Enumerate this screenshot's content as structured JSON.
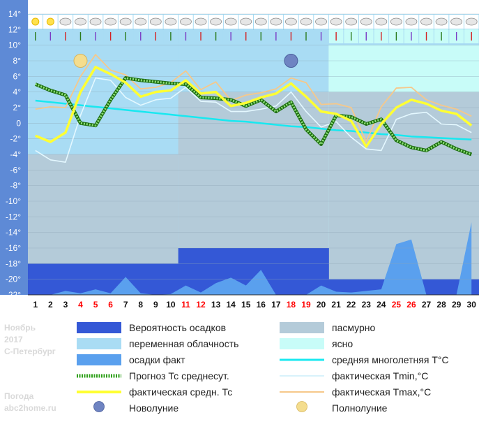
{
  "side_info": {
    "month": "Ноябрь",
    "year": "2017",
    "city": "С-Петербург",
    "site_line1": "Погода",
    "site_line2": "abc2home.ru"
  },
  "legend": {
    "precip_prob": "Вероятность осадков",
    "overcast": "пасмурно",
    "variable_cloud": "переменная облачность",
    "clear": "ясно",
    "precip_fact": "осадки факт",
    "avg_longterm": "средняя многолетняя T°C",
    "forecast_tavg": "Прогноз Тс среднесут.",
    "fact_tmin": "фактическая Tmin,°C",
    "fact_tavg": "фактическая средн. Тс",
    "fact_tmax": "фактическая Tmax,°C",
    "new_moon": "Новолуние",
    "full_moon": "Полнолуние"
  },
  "colors": {
    "plot_bg": "#a9dcf4",
    "overcast": "#b4cbd9",
    "clear_bg": "#c8fcf8",
    "precip_prob": "#3458d6",
    "precip_fact": "#5aa0ee",
    "avg_longterm": "#18e8f0",
    "forecast": "#2fa01a",
    "fact_tmin": "#e4f8ff",
    "fact_tavg": "#ffff33",
    "fact_tmax": "#f6c88a",
    "axis_panel": "#5e8ad6",
    "weekend": "#ff0000"
  },
  "chart_data": {
    "type": "line",
    "title": "",
    "xlabel": "",
    "ylabel": "",
    "x": [
      1,
      2,
      3,
      4,
      5,
      6,
      7,
      8,
      9,
      10,
      11,
      12,
      13,
      14,
      15,
      16,
      17,
      18,
      19,
      20,
      21,
      22,
      23,
      24,
      25,
      26,
      27,
      28,
      29,
      30
    ],
    "x_tick_labels": [
      "1",
      "2",
      "3",
      "4",
      "5",
      "6",
      "7",
      "8",
      "9",
      "10",
      "11",
      "12",
      "13",
      "14",
      "15",
      "16",
      "17",
      "18",
      "19",
      "20",
      "21",
      "22",
      "23",
      "24",
      "25",
      "26",
      "27",
      "28",
      "29",
      "30"
    ],
    "weekend_days": [
      4,
      5,
      6,
      11,
      12,
      18,
      19,
      25,
      26
    ],
    "ylim": [
      -22,
      14
    ],
    "y_tick_labels": [
      "14°",
      "12°",
      "10°",
      "8°",
      "6°",
      "4°",
      "2°",
      "0",
      "-2°",
      "-4°",
      "-6°",
      "-8°",
      "-10°",
      "-12°",
      "-14°",
      "-16°",
      "-18°",
      "-20°",
      "-22°"
    ],
    "grid": true,
    "series": [
      {
        "name": "Прогноз Тс среднесут.",
        "values": [
          5.0,
          4.2,
          3.6,
          0.0,
          -0.3,
          3.0,
          5.8,
          5.5,
          5.3,
          5.1,
          5.0,
          3.3,
          3.2,
          3.0,
          2.2,
          3.0,
          1.5,
          2.7,
          -0.8,
          -2.7,
          1.0,
          0.8,
          -0.1,
          0.5,
          -2.2,
          -3.1,
          -3.5,
          -2.4,
          -3.3,
          -4.0
        ]
      },
      {
        "name": "фактическая средн. Тс",
        "values": [
          -1.6,
          -2.4,
          -1.2,
          4.0,
          7.2,
          6.3,
          5.2,
          3.4,
          4.0,
          4.2,
          5.5,
          3.8,
          4.0,
          2.2,
          2.6,
          3.3,
          3.8,
          5.1,
          3.4,
          1.5,
          1.2,
          0.3,
          -3.0,
          -0.1,
          2.0,
          3.0,
          2.5,
          1.6,
          1.2,
          -0.3
        ]
      },
      {
        "name": "фактическая Tmin,°C",
        "values": [
          -3.5,
          -4.7,
          -5.0,
          1.0,
          5.8,
          5.5,
          3.3,
          2.3,
          3.0,
          3.2,
          4.6,
          2.8,
          2.7,
          1.5,
          1.5,
          1.8,
          2.2,
          4.0,
          1.5,
          -0.5,
          0.2,
          -1.8,
          -3.3,
          -3.5,
          0.5,
          1.2,
          1.4,
          -0.1,
          -0.2,
          -1.2
        ]
      },
      {
        "name": "фактическая Tmax,°C",
        "values": [
          1.8,
          2.1,
          2.0,
          6.0,
          8.8,
          6.8,
          6.2,
          4.4,
          4.6,
          5.2,
          6.7,
          4.3,
          5.3,
          2.9,
          3.6,
          3.9,
          4.4,
          5.8,
          5.2,
          2.4,
          2.5,
          2.0,
          -2.4,
          2.1,
          4.5,
          4.6,
          3.0,
          2.3,
          1.8,
          0.9
        ]
      },
      {
        "name": "средняя многолетняя T°C",
        "values": [
          2.9,
          2.7,
          2.5,
          2.3,
          2.1,
          1.9,
          1.7,
          1.5,
          1.3,
          1.1,
          0.9,
          0.7,
          0.5,
          0.3,
          0.2,
          0.0,
          -0.2,
          -0.4,
          -0.5,
          -0.7,
          -0.9,
          -1.0,
          -1.2,
          -1.4,
          -1.5,
          -1.7,
          -1.8,
          -1.9,
          -2.0,
          -2.1
        ]
      },
      {
        "name": "осадки факт",
        "values": [
          -22.0,
          -22.0,
          -21.5,
          -21.8,
          -21.3,
          -21.8,
          -19.7,
          -21.8,
          -22.0,
          -21.9,
          -20.8,
          -21.7,
          -20.5,
          -19.8,
          -20.8,
          -18.8,
          -22.0,
          -22.0,
          -22.0,
          -20.8,
          -21.6,
          -21.7,
          -21.5,
          -21.3,
          -15.5,
          -14.9,
          -22.0,
          -22.0,
          -22.0,
          -12.7
        ]
      },
      {
        "name": "Вероятность осадков",
        "values": [
          -18,
          -18,
          -18,
          -18,
          -18,
          -18,
          -18,
          -18,
          -18,
          -18,
          -16,
          -16,
          -16,
          -16,
          -16,
          -16,
          -16,
          -16,
          -16,
          -16,
          -20,
          -20,
          -20,
          -20,
          -20,
          -20,
          -20,
          -20,
          -20,
          -20
        ]
      }
    ],
    "sky_bands": [
      {
        "from_day": 1,
        "to_day": 10,
        "level": 14,
        "type": "variable"
      },
      {
        "from_day": 11,
        "to_day": 20,
        "level": 4,
        "type": "overcast"
      },
      {
        "from_day": 21,
        "to_day": 30,
        "level": 10,
        "type": "clear"
      }
    ],
    "moon_phases": [
      {
        "type": "full",
        "day": 4,
        "y": 8
      },
      {
        "type": "new",
        "day": 18,
        "y": 8
      }
    ]
  }
}
